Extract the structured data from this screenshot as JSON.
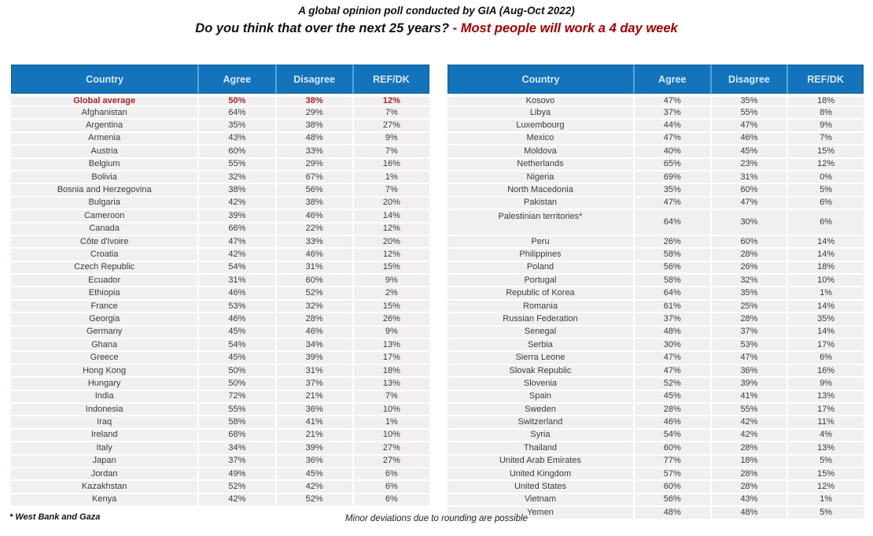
{
  "title": {
    "line1": "A global opinion poll conducted by GIA (Aug-Oct 2022)",
    "question": "Do you think that over the next 25 years?",
    "statement": "- Most people will work a 4 day week"
  },
  "footnote": "* West Bank and Gaza",
  "rounding_note": "Minor deviations due to rounding are possible",
  "colors": {
    "header_bg": "#1373BB",
    "header_text": "#D9E9F6",
    "header_divider": "#57A6DB",
    "header_border": "#0D5C99",
    "row_bg": "#F1EFEF",
    "cell_text": "#3C3C3C",
    "accent_red": "#A00000",
    "highlight_red": "#A5282C"
  },
  "chart_data": {
    "type": "table",
    "title": "Do you think that over the next 25 years? - Most people will work a 4 day week",
    "subtitle": "A global opinion poll conducted by GIA (Aug-Oct 2022)",
    "unit": "%",
    "columns": [
      "Country",
      "Agree",
      "Disagree",
      "REF/DK"
    ],
    "highlight_rows": [
      "Global average"
    ],
    "tall_rows": [
      "Palestinian territories*"
    ],
    "tables": [
      {
        "name": "left",
        "rows": [
          [
            "Global average",
            50,
            38,
            12
          ],
          [
            "Afghanistan",
            64,
            29,
            7
          ],
          [
            "Argentina",
            35,
            38,
            27
          ],
          [
            "Armenia",
            43,
            48,
            9
          ],
          [
            "Austria",
            60,
            33,
            7
          ],
          [
            "Belgium",
            55,
            29,
            16
          ],
          [
            "Bolivia",
            32,
            67,
            1
          ],
          [
            "Bosnia and Herzegovina",
            38,
            56,
            7
          ],
          [
            "Bulgaria",
            42,
            38,
            20
          ],
          [
            "Cameroon",
            39,
            46,
            14
          ],
          [
            "Canada",
            66,
            22,
            12
          ],
          [
            "Côte d'Ivoire",
            47,
            33,
            20
          ],
          [
            "Croatia",
            42,
            46,
            12
          ],
          [
            "Czech Republic",
            54,
            31,
            15
          ],
          [
            "Ecuador",
            31,
            60,
            9
          ],
          [
            "Ethiopia",
            46,
            52,
            2
          ],
          [
            "France",
            53,
            32,
            15
          ],
          [
            "Georgia",
            46,
            28,
            26
          ],
          [
            "Germany",
            45,
            46,
            9
          ],
          [
            "Ghana",
            54,
            34,
            13
          ],
          [
            "Greece",
            45,
            39,
            17
          ],
          [
            "Hong Kong",
            50,
            31,
            18
          ],
          [
            "Hungary",
            50,
            37,
            13
          ],
          [
            "India",
            72,
            21,
            7
          ],
          [
            "Indonesia",
            55,
            36,
            10
          ],
          [
            "Iraq",
            58,
            41,
            1
          ],
          [
            "Ireland",
            68,
            21,
            10
          ],
          [
            "Italy",
            34,
            39,
            27
          ],
          [
            "Japan",
            37,
            36,
            27
          ],
          [
            "Jordan",
            49,
            45,
            6
          ],
          [
            "Kazakhstan",
            52,
            42,
            6
          ],
          [
            "Kenya",
            42,
            52,
            6
          ]
        ]
      },
      {
        "name": "right",
        "rows": [
          [
            "Kosovo",
            47,
            35,
            18
          ],
          [
            "Libya",
            37,
            55,
            8
          ],
          [
            "Luxembourg",
            44,
            47,
            9
          ],
          [
            "Mexico",
            47,
            46,
            7
          ],
          [
            "Moldova",
            40,
            45,
            15
          ],
          [
            "Netherlands",
            65,
            23,
            12
          ],
          [
            "Nigeria",
            69,
            31,
            0
          ],
          [
            "North Macedonia",
            35,
            60,
            5
          ],
          [
            "Pakistan",
            47,
            47,
            6
          ],
          [
            "Palestinian territories*",
            64,
            30,
            6
          ],
          [
            "Peru",
            26,
            60,
            14
          ],
          [
            "Philippines",
            58,
            28,
            14
          ],
          [
            "Poland",
            56,
            26,
            18
          ],
          [
            "Portugal",
            58,
            32,
            10
          ],
          [
            "Republic of Korea",
            64,
            35,
            1
          ],
          [
            "Romania",
            61,
            25,
            14
          ],
          [
            "Russian Federation",
            37,
            28,
            35
          ],
          [
            "Senegal",
            48,
            37,
            14
          ],
          [
            "Serbia",
            30,
            53,
            17
          ],
          [
            "Sierra Leone",
            47,
            47,
            6
          ],
          [
            "Slovak Republic",
            47,
            36,
            16
          ],
          [
            "Slovenia",
            52,
            39,
            9
          ],
          [
            "Spain",
            45,
            41,
            13
          ],
          [
            "Sweden",
            28,
            55,
            17
          ],
          [
            "Switzerland",
            46,
            42,
            11
          ],
          [
            "Syria",
            54,
            42,
            4
          ],
          [
            "Thailand",
            60,
            28,
            13
          ],
          [
            "United Arab Emirates",
            77,
            18,
            5
          ],
          [
            "United Kingdom",
            57,
            28,
            15
          ],
          [
            "United States",
            60,
            28,
            12
          ],
          [
            "Vietnam",
            56,
            43,
            1
          ],
          [
            "Yemen",
            48,
            48,
            5
          ]
        ]
      }
    ]
  }
}
